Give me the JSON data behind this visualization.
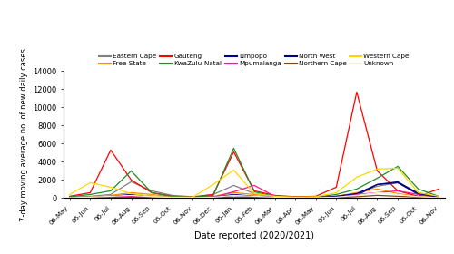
{
  "title": "",
  "xlabel": "Date reported (2020/2021)",
  "ylabel": "7-day moving average no. of new daily cases",
  "ylim": [
    0,
    14000
  ],
  "yticks": [
    0,
    2000,
    4000,
    6000,
    8000,
    10000,
    12000,
    14000
  ],
  "x_labels": [
    "06-May",
    "06-Jun",
    "06-Jul",
    "06-Aug",
    "06-Sep",
    "06-Oct",
    "06-Nov",
    "06-Dec",
    "06-Jan",
    "06-Feb",
    "06-Mar",
    "06-Apr",
    "06-May",
    "06-Jun",
    "06-Jul",
    "06-Aug",
    "06-Sep",
    "06-Oct",
    "06-Nov"
  ],
  "series": [
    {
      "name": "Eastern Cape",
      "color": "#808080",
      "data_y": [
        100,
        200,
        400,
        1800,
        800,
        300,
        150,
        400,
        1400,
        500,
        200,
        100,
        100,
        200,
        500,
        1300,
        1700,
        600,
        100
      ]
    },
    {
      "name": "Free State",
      "color": "#FF8C00",
      "data_y": [
        50,
        100,
        300,
        600,
        400,
        150,
        100,
        200,
        600,
        400,
        150,
        80,
        80,
        200,
        600,
        1000,
        500,
        200,
        80
      ]
    },
    {
      "name": "Gauteng",
      "color": "#FF0000",
      "data_y": [
        200,
        600,
        5300,
        2000,
        600,
        200,
        100,
        400,
        5100,
        800,
        300,
        150,
        200,
        1200,
        11700,
        3000,
        800,
        200,
        1000
      ]
    },
    {
      "name": "KwaZulu-Natal",
      "color": "#228B22",
      "data_y": [
        150,
        400,
        800,
        3000,
        600,
        200,
        100,
        300,
        5500,
        700,
        200,
        100,
        100,
        400,
        1000,
        2200,
        3500,
        1000,
        200
      ]
    },
    {
      "name": "Limpopo",
      "color": "#00008B",
      "data_y": [
        30,
        50,
        100,
        200,
        150,
        80,
        50,
        100,
        400,
        200,
        100,
        50,
        50,
        100,
        300,
        1500,
        1700,
        400,
        100
      ]
    },
    {
      "name": "Mpumalanga",
      "color": "#FF1493",
      "data_y": [
        30,
        50,
        100,
        200,
        150,
        70,
        50,
        100,
        700,
        1400,
        200,
        80,
        50,
        100,
        400,
        600,
        800,
        400,
        100
      ]
    },
    {
      "name": "North West",
      "color": "#000080",
      "data_y": [
        30,
        50,
        200,
        400,
        200,
        80,
        50,
        100,
        300,
        200,
        100,
        50,
        50,
        200,
        500,
        1500,
        1800,
        500,
        100
      ]
    },
    {
      "name": "Northern Cape",
      "color": "#8B4513",
      "data_y": [
        20,
        30,
        60,
        100,
        80,
        40,
        30,
        50,
        100,
        80,
        40,
        20,
        20,
        50,
        150,
        300,
        200,
        100,
        30
      ]
    },
    {
      "name": "Western Cape",
      "color": "#FFD700",
      "data_y": [
        400,
        1700,
        1200,
        500,
        200,
        100,
        100,
        1500,
        3100,
        500,
        200,
        100,
        150,
        600,
        2300,
        3200,
        3300,
        600,
        200
      ]
    },
    {
      "name": "Unknown",
      "color": "#FAEBD7",
      "data_y": [
        50,
        100,
        200,
        300,
        150,
        80,
        50,
        100,
        300,
        200,
        100,
        50,
        50,
        100,
        300,
        600,
        400,
        150,
        50
      ]
    }
  ],
  "legend_row1": [
    "Eastern Cape",
    "Free State",
    "Gauteng",
    "KwaZulu-Natal",
    "Limpopo"
  ],
  "legend_row2": [
    "Mpumalanga",
    "North West",
    "Northern Cape",
    "Western Cape",
    "Unknown"
  ],
  "figsize": [
    5.0,
    2.8
  ],
  "dpi": 100
}
